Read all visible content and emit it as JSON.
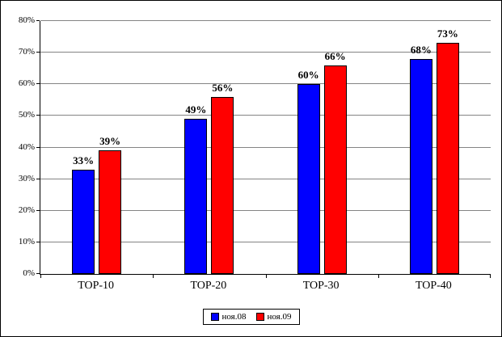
{
  "chart_data": {
    "type": "bar",
    "title": "",
    "xlabel": "",
    "ylabel": "",
    "categories": [
      "TOP-10",
      "TOP-20",
      "TOP-30",
      "TOP-40"
    ],
    "series": [
      {
        "name": "ноя.08",
        "color": "#0000ff",
        "values": [
          33,
          49,
          60,
          68
        ]
      },
      {
        "name": "ноя.09",
        "color": "#ff0000",
        "values": [
          39,
          56,
          66,
          73
        ]
      }
    ],
    "data_labels": [
      "33%",
      "39%",
      "49%",
      "56%",
      "60%",
      "66%",
      "68%",
      "73%"
    ],
    "value_suffix": "%",
    "ylim": [
      0,
      80
    ],
    "ytick_step": 10,
    "ytick_labels": [
      "0%",
      "10%",
      "20%",
      "30%",
      "40%",
      "50%",
      "60%",
      "70%",
      "80%"
    ],
    "grid": true,
    "legend_position": "bottom",
    "bar_border_color": "#000000",
    "gridline_color": "#848484"
  }
}
